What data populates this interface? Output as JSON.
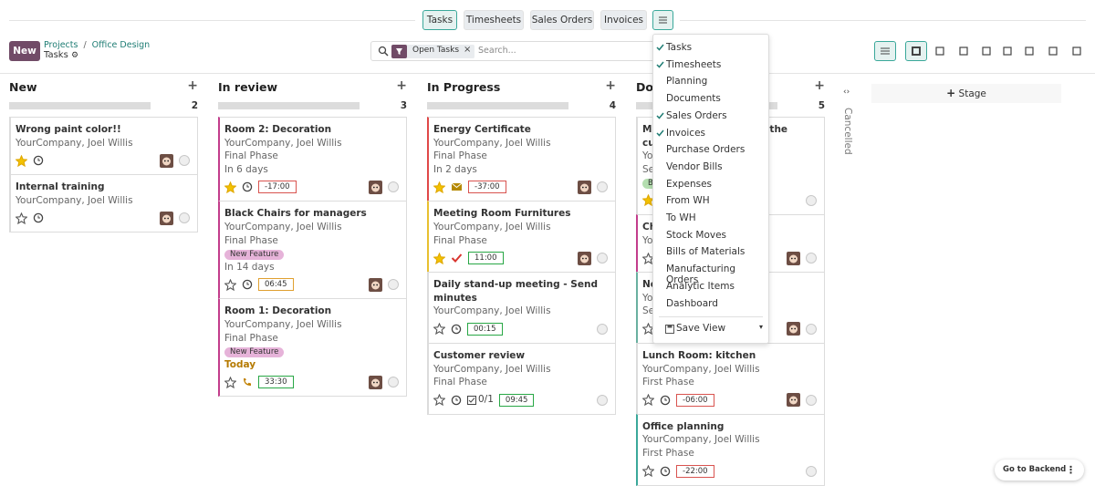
{
  "topbar": {
    "tabs": [
      {
        "label": "Tasks",
        "active": true
      },
      {
        "label": "Timesheets",
        "active": false
      },
      {
        "label": "Sales Orders",
        "active": false
      },
      {
        "label": "Invoices",
        "active": false
      }
    ]
  },
  "control": {
    "new_button": "New",
    "breadcrumb": [
      "Projects",
      "Office Design"
    ],
    "title": "Tasks",
    "filter": "Open Tasks",
    "search_placeholder": "Search..."
  },
  "columns": [
    {
      "title": "New",
      "count": 2,
      "cards": [
        {
          "title": "Wrong paint color!!",
          "company": "YourCompany, Joel Willis",
          "starred": true,
          "activity": "clock",
          "avatar": true
        },
        {
          "title": "Internal training",
          "company": "YourCompany, Joel Willis",
          "starred": false,
          "activity": "clock",
          "avatar": true
        }
      ]
    },
    {
      "title": "In review",
      "count": 3,
      "cards": [
        {
          "title": "Room 2: Decoration",
          "company": "YourCompany, Joel Willis",
          "phase": "Final Phase",
          "due": "In 6 days",
          "starred": true,
          "activity": "clock",
          "timer": "-17:00",
          "timer_color": "#d9534f",
          "avatar": true,
          "color": "#c33d8c"
        },
        {
          "title": "Black Chairs for managers",
          "company": "YourCompany, Joel Willis",
          "phase": "Final Phase",
          "tag": "New Feature",
          "tag_color": "#e6b3d9",
          "due": "In 14 days",
          "starred": false,
          "activity": "clock",
          "timer": "06:45",
          "timer_color": "#e0a030",
          "avatar": true,
          "color": "#c33d8c"
        },
        {
          "title": "Room 1: Decoration",
          "company": "YourCompany, Joel Willis",
          "phase": "Final Phase",
          "tag": "New Feature",
          "tag_color": "#e6b3d9",
          "due": "Today",
          "due_color": "#b57a00",
          "starred": false,
          "activity": "phone",
          "timer": "33:30",
          "timer_color": "#28a745",
          "avatar": true,
          "color": "#c33d8c"
        }
      ]
    },
    {
      "title": "In Progress",
      "count": 4,
      "cards": [
        {
          "title": "Energy Certificate",
          "company": "YourCompany, Joel Willis",
          "phase": "Final Phase",
          "due": "In 2 days",
          "starred": true,
          "activity": "mail",
          "timer": "-37:00",
          "timer_color": "#d9534f",
          "avatar": true,
          "color": "#e04848"
        },
        {
          "title": "Meeting Room Furnitures",
          "company": "YourCompany, Joel Willis",
          "phase": "Final Phase",
          "starred": true,
          "activity": "done",
          "timer": "11:00",
          "timer_color": "#28a745",
          "avatar": true,
          "color": "#e8c030"
        },
        {
          "title": "Daily stand-up meeting - Send minutes",
          "company": "YourCompany, Joel Willis",
          "starred": false,
          "activity": "clock",
          "timer": "00:15",
          "timer_color": "#28a745",
          "avatar": false
        },
        {
          "title": "Customer review",
          "company": "YourCompany, Joel Willis",
          "phase": "Final Phase",
          "starred": false,
          "activity": "clock",
          "subtasks": "0/1",
          "timer": "09:45",
          "timer_color": "#28a745",
          "avatar": false
        }
      ]
    },
    {
      "title": "Done",
      "count": 5,
      "cards": [
        {
          "title": "Modifications asked by the customer",
          "company": "YourCompany, Joel Willis",
          "phase": "Second Phase",
          "tag": "Bug",
          "tag_color": "#b4deb0",
          "starred": true,
          "activity": "clock",
          "avatar": false
        },
        {
          "title": "Check furniture",
          "company": "YourCompany, Joel Willis",
          "starred": false,
          "activity": "clock",
          "avatar": true,
          "color": "#c33d8c"
        },
        {
          "title": "Noise reduction",
          "company": "YourCompany, Joel Willis",
          "phase": "Second Phase",
          "starred": false,
          "activity": "clock",
          "avatar": true,
          "color": "#6ab0a0"
        },
        {
          "title": "Lunch Room: kitchen",
          "company": "YourCompany, Joel Willis",
          "phase": "First Phase",
          "starred": false,
          "activity": "clock",
          "timer": "-06:00",
          "timer_color": "#d9534f",
          "avatar": true
        },
        {
          "title": "Office planning",
          "company": "YourCompany, Joel Willis",
          "phase": "First Phase",
          "starred": false,
          "activity": "clock",
          "timer": "-22:00",
          "timer_color": "#d9534f",
          "avatar": false,
          "color": "#3aa89a"
        }
      ]
    }
  ],
  "add_stage": "Stage",
  "folded_column": "Cancelled",
  "dropdown": {
    "items": [
      {
        "label": "Tasks",
        "checked": true
      },
      {
        "label": "Timesheets",
        "checked": true
      },
      {
        "label": "Planning",
        "checked": false
      },
      {
        "label": "Documents",
        "checked": false
      },
      {
        "label": "Sales Orders",
        "checked": true
      },
      {
        "label": "Invoices",
        "checked": true
      },
      {
        "label": "Purchase Orders",
        "checked": false
      },
      {
        "label": "Vendor Bills",
        "checked": false
      },
      {
        "label": "Expenses",
        "checked": false
      },
      {
        "label": "From WH",
        "checked": false
      },
      {
        "label": "To WH",
        "checked": false
      },
      {
        "label": "Stock Moves",
        "checked": false
      },
      {
        "label": "Bills of Materials",
        "checked": false
      },
      {
        "label": "Manufacturing Orders",
        "checked": false
      },
      {
        "label": "Analytic Items",
        "checked": false
      },
      {
        "label": "Dashboard",
        "checked": false
      }
    ],
    "save_view": "Save View"
  },
  "backend_button": "Go to Backend"
}
